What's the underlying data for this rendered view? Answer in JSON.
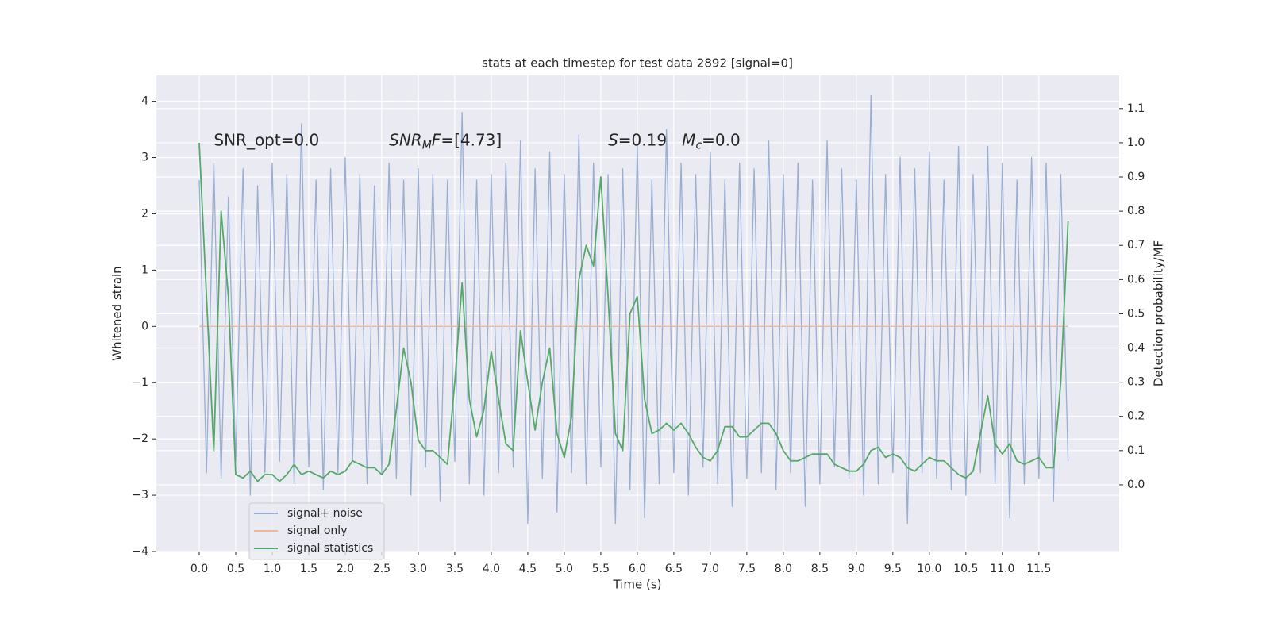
{
  "chart_data": {
    "type": "line",
    "title": "stats at each timestep for test data 2892 [signal=0]",
    "xlabel": "Time (s)",
    "ylabel": "Whitened strain",
    "y2label": "Detection probability/MF",
    "annotations": [
      [
        "SNR_opt=0.0"
      ],
      [
        "SNR",
        "M",
        "F",
        "=[4.73]"
      ],
      [
        "S",
        "=0.19   ",
        "M",
        "c",
        "=0.0"
      ]
    ],
    "x": [
      0,
      0.1,
      0.2,
      0.3,
      0.4,
      0.5,
      0.6,
      0.7,
      0.8,
      0.9,
      1,
      1.1,
      1.2,
      1.3,
      1.4,
      1.5,
      1.6,
      1.7,
      1.8,
      1.9,
      2,
      2.1,
      2.2,
      2.3,
      2.4,
      2.5,
      2.6,
      2.7,
      2.8,
      2.9,
      3,
      3.1,
      3.2,
      3.3,
      3.4,
      3.5,
      3.6,
      3.7,
      3.8,
      3.9,
      4,
      4.1,
      4.2,
      4.3,
      4.4,
      4.5,
      4.6,
      4.7,
      4.8,
      4.9,
      5,
      5.1,
      5.2,
      5.3,
      5.4,
      5.5,
      5.6,
      5.7,
      5.8,
      5.9,
      6,
      6.1,
      6.2,
      6.3,
      6.4,
      6.5,
      6.6,
      6.7,
      6.8,
      6.9,
      7,
      7.1,
      7.2,
      7.3,
      7.4,
      7.5,
      7.6,
      7.7,
      7.8,
      7.9,
      8,
      8.1,
      8.2,
      8.3,
      8.4,
      8.5,
      8.6,
      8.7,
      8.8,
      8.9,
      9,
      9.1,
      9.2,
      9.3,
      9.4,
      9.5,
      9.6,
      9.7,
      9.8,
      9.9,
      10,
      10.1,
      10.2,
      10.3,
      10.4,
      10.5,
      10.6,
      10.7,
      10.8,
      10.9,
      11,
      11.1,
      11.2,
      11.3,
      11.4,
      11.5,
      11.6,
      11.7,
      11.8,
      11.9
    ],
    "series": [
      {
        "name": "signal+ noise",
        "color": "#99aed3",
        "values": [
          2.6,
          -2.6,
          2.9,
          -2.7,
          2.3,
          -2.4,
          2.8,
          -3.0,
          2.5,
          -2.6,
          2.9,
          -2.4,
          2.7,
          -2.8,
          3.6,
          -2.5,
          2.6,
          -2.9,
          2.8,
          -2.6,
          3.0,
          -2.4,
          2.7,
          -2.8,
          2.5,
          -2.6,
          2.9,
          -2.7,
          2.6,
          -3.0,
          2.8,
          -2.5,
          2.7,
          -3.1,
          2.6,
          -2.4,
          3.8,
          -2.8,
          2.6,
          -3.0,
          2.7,
          -2.6,
          2.9,
          -2.5,
          3.3,
          -3.5,
          2.8,
          -2.7,
          3.1,
          -3.3,
          2.7,
          -2.6,
          3.4,
          -2.8,
          2.9,
          -2.5,
          2.7,
          -3.5,
          2.8,
          -2.9,
          3.2,
          -3.4,
          2.6,
          -2.8,
          3.5,
          -2.6,
          2.9,
          -3.0,
          2.7,
          -2.5,
          3.1,
          -2.8,
          2.6,
          -3.2,
          2.9,
          -2.7,
          2.8,
          -2.6,
          3.3,
          -2.9,
          2.7,
          -2.6,
          2.9,
          -3.2,
          2.6,
          -2.8,
          3.3,
          -2.5,
          2.8,
          -2.7,
          2.6,
          -3.0,
          4.1,
          -2.8,
          2.7,
          -2.6,
          3.0,
          -3.5,
          2.8,
          -2.6,
          3.1,
          -2.7,
          2.6,
          -2.9,
          3.2,
          -3.0,
          2.7,
          -2.6,
          3.2,
          -2.8,
          2.9,
          -3.4,
          2.6,
          -2.8,
          3.0,
          -2.7,
          2.9,
          -3.1,
          2.7,
          -2.4
        ]
      },
      {
        "name": "signal only",
        "color": "#eeb8a0",
        "values": [
          0,
          0,
          0,
          0,
          0,
          0,
          0,
          0,
          0,
          0,
          0,
          0,
          0,
          0,
          0,
          0,
          0,
          0,
          0,
          0,
          0,
          0,
          0,
          0,
          0,
          0,
          0,
          0,
          0,
          0,
          0,
          0,
          0,
          0,
          0,
          0,
          0,
          0,
          0,
          0,
          0,
          0,
          0,
          0,
          0,
          0,
          0,
          0,
          0,
          0,
          0,
          0,
          0,
          0,
          0,
          0,
          0,
          0,
          0,
          0,
          0,
          0,
          0,
          0,
          0,
          0,
          0,
          0,
          0,
          0,
          0,
          0,
          0,
          0,
          0,
          0,
          0,
          0,
          0,
          0,
          0,
          0,
          0,
          0,
          0,
          0,
          0,
          0,
          0,
          0,
          0,
          0,
          0,
          0,
          0,
          0,
          0,
          0,
          0,
          0,
          0,
          0,
          0,
          0,
          0,
          0,
          0,
          0,
          0,
          0,
          0,
          0,
          0,
          0,
          0,
          0,
          0,
          0,
          0,
          0
        ]
      },
      {
        "name": "signal statistics",
        "color": "#55a868",
        "axis": "y2",
        "values": [
          1.0,
          0.55,
          0.1,
          0.8,
          0.55,
          0.03,
          0.02,
          0.04,
          0.01,
          0.03,
          0.03,
          0.01,
          0.03,
          0.06,
          0.03,
          0.04,
          0.03,
          0.02,
          0.04,
          0.03,
          0.04,
          0.07,
          0.06,
          0.05,
          0.05,
          0.03,
          0.06,
          0.22,
          0.4,
          0.3,
          0.13,
          0.1,
          0.1,
          0.08,
          0.06,
          0.3,
          0.59,
          0.25,
          0.14,
          0.22,
          0.39,
          0.25,
          0.12,
          0.1,
          0.45,
          0.3,
          0.16,
          0.3,
          0.4,
          0.15,
          0.08,
          0.2,
          0.6,
          0.7,
          0.64,
          0.9,
          0.55,
          0.15,
          0.1,
          0.5,
          0.55,
          0.25,
          0.15,
          0.16,
          0.18,
          0.16,
          0.18,
          0.15,
          0.11,
          0.08,
          0.07,
          0.1,
          0.17,
          0.17,
          0.14,
          0.14,
          0.16,
          0.18,
          0.18,
          0.15,
          0.1,
          0.07,
          0.07,
          0.08,
          0.09,
          0.09,
          0.09,
          0.06,
          0.05,
          0.04,
          0.04,
          0.06,
          0.1,
          0.11,
          0.08,
          0.09,
          0.08,
          0.05,
          0.04,
          0.06,
          0.08,
          0.07,
          0.07,
          0.05,
          0.03,
          0.02,
          0.04,
          0.15,
          0.26,
          0.12,
          0.09,
          0.12,
          0.07,
          0.06,
          0.07,
          0.08,
          0.05,
          0.05,
          0.3,
          0.77
        ]
      }
    ],
    "xlim": [
      -0.587,
      12.6
    ],
    "xticks": [
      {
        "value": 0,
        "label": "0.0"
      },
      0.5,
      {
        "value": 1,
        "label": "1.0"
      },
      1.5,
      {
        "value": 2,
        "label": "2.0"
      },
      2.5,
      {
        "value": 3,
        "label": "3.0"
      },
      3.5,
      {
        "value": 4,
        "label": "4.0"
      },
      4.5,
      {
        "value": 5,
        "label": "5.0"
      },
      5.5,
      {
        "value": 6,
        "label": "6.0"
      },
      6.5,
      {
        "value": 7,
        "label": "7.0"
      },
      7.5,
      {
        "value": 8,
        "label": "8.0"
      },
      8.5,
      {
        "value": 9,
        "label": "9.0"
      },
      9.5,
      {
        "value": 10,
        "label": "10.0"
      },
      10.5,
      {
        "value": 11,
        "label": "11.0"
      },
      11.5
    ],
    "ylim": [
      -4,
      4.46
    ],
    "yticks": [
      {
        "value": -4,
        "label": "−4"
      },
      {
        "value": -3,
        "label": "−3"
      },
      {
        "value": -2,
        "label": "−2"
      },
      {
        "value": -1,
        "label": "−1"
      },
      0,
      1,
      2,
      3,
      4
    ],
    "y2lim": [
      -0.195,
      1.197
    ],
    "y2ticks": [
      {
        "value": 0,
        "label": "0.0"
      },
      0.1,
      0.2,
      0.3,
      0.4,
      0.5,
      0.6,
      0.7,
      0.8,
      0.9,
      {
        "value": 1,
        "label": "1.0"
      },
      1.1
    ],
    "grid": true,
    "legend": "lower left"
  }
}
